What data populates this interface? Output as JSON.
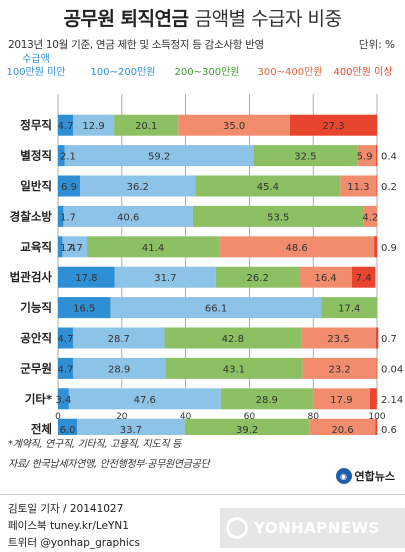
{
  "header": {
    "title_bold": "공무원 퇴직연금",
    "title_light": "금액별 수급자 비중",
    "subtitle": "2013년 10월 기준, 연금 제한 및 소득정지 등 감소사항 반영",
    "unit": "단위: %"
  },
  "chart_data": {
    "type": "bar",
    "orientation": "horizontal",
    "stacked": true,
    "categories": [
      "정무직",
      "별정직",
      "일반직",
      "경찰소방",
      "교육직",
      "법관검사",
      "기능직",
      "공안직",
      "군무원",
      "기타*",
      "전체"
    ],
    "series": [
      {
        "name": "수급액 100만원 미만",
        "color": "#2f8fd4",
        "values": [
          4.7,
          2.1,
          6.9,
          1.7,
          1.4,
          17.8,
          16.5,
          4.7,
          4.7,
          3.4,
          6.0
        ]
      },
      {
        "name": "100~200만원",
        "color": "#8ec3e8",
        "values": [
          12.9,
          59.2,
          36.2,
          40.6,
          7.7,
          31.7,
          66.1,
          28.7,
          28.9,
          47.6,
          33.7
        ]
      },
      {
        "name": "200~300만원",
        "color": "#8cc063",
        "values": [
          20.1,
          32.5,
          45.4,
          53.5,
          41.4,
          26.2,
          17.4,
          42.8,
          43.1,
          28.9,
          39.2
        ]
      },
      {
        "name": "300~400만원",
        "color": "#f18d6e",
        "values": [
          35.0,
          5.9,
          11.3,
          4.2,
          48.6,
          16.4,
          null,
          23.5,
          23.2,
          17.9,
          20.6
        ]
      },
      {
        "name": "400만원 이상",
        "color": "#e8452f",
        "values": [
          27.3,
          0.4,
          0.2,
          null,
          0.9,
          7.4,
          null,
          0.7,
          0.04,
          2.14,
          0.6
        ]
      }
    ],
    "value_labels": [
      [
        "4.7",
        "12.9",
        "20.1",
        "35.0",
        "27.3"
      ],
      [
        "2.1",
        "59.2",
        "32.5",
        "5.9",
        "0.4"
      ],
      [
        "6.9",
        "36.2",
        "45.4",
        "11.3",
        "0.2"
      ],
      [
        "1.7",
        "40.6",
        "53.5",
        "4.2",
        ""
      ],
      [
        "1.4",
        "7.7",
        "41.4",
        "48.6",
        "0.9"
      ],
      [
        "17.8",
        "31.7",
        "26.2",
        "16.4",
        "7.4"
      ],
      [
        "16.5",
        "66.1",
        "17.4",
        "",
        ""
      ],
      [
        "4.7",
        "28.7",
        "42.8",
        "23.5",
        "0.7"
      ],
      [
        "4.7",
        "28.9",
        "43.1",
        "23.2",
        "0.04"
      ],
      [
        "3.4",
        "47.6",
        "28.9",
        "17.9",
        "2.14"
      ],
      [
        "6.0",
        "33.7",
        "39.2",
        "20.6",
        "0.6"
      ]
    ],
    "xlim": [
      0,
      100
    ],
    "xticks": [
      0,
      20,
      40,
      60,
      80,
      100
    ],
    "grid": true,
    "legend_position": "top",
    "legend_label_colors": [
      "#2f8fd4",
      "#2f8fd4",
      "#3f9b2e",
      "#e0613c",
      "#e8452f"
    ]
  },
  "notes": {
    "footnote": "*계약직, 연구직, 기타직, 고용직, 지도직 등",
    "source": "자료/ 한국납세자연맹, 안전행정부·공무원연금공단"
  },
  "credits": {
    "reporter": "김토일 기자 / 20141027",
    "facebook": "페이스북 tuney.kr/LeYN1",
    "twitter": "트위터 @yonhap_graphics",
    "logo": "연합뉴스",
    "watermark": "YONHAPNEWS"
  }
}
